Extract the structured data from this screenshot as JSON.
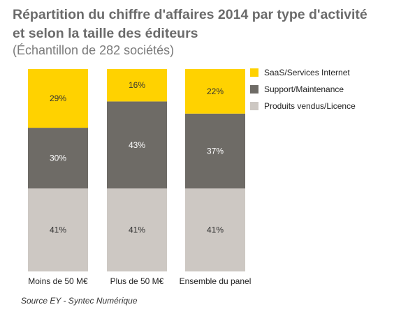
{
  "chart_data": {
    "type": "bar",
    "stacked": "percent",
    "title_line1": "Répartition du chiffre d'affaires 2014 par type d'activité",
    "title_line2": "et selon la taille des éditeurs",
    "subtitle": "(Échantillon de 282 sociétés)",
    "categories": [
      "Moins de 50 M€",
      "Plus de 50 M€",
      "Ensemble du panel"
    ],
    "series": [
      {
        "name": "Produits vendus/Licence",
        "values": [
          41,
          41,
          41
        ],
        "labels": [
          "41%",
          "41%",
          "41%"
        ],
        "color": "#cdc8c3"
      },
      {
        "name": "Support/Maintenance",
        "values": [
          30,
          43,
          37
        ],
        "labels": [
          "30%",
          "43%",
          "37%"
        ],
        "color": "#6e6b66"
      },
      {
        "name": "SaaS/Services Internet",
        "values": [
          29,
          16,
          22
        ],
        "labels": [
          "29%",
          "16%",
          "22%"
        ],
        "color": "#ffd200"
      }
    ],
    "legend_order": [
      "SaaS/Services Internet",
      "Support/Maintenance",
      "Produits vendus/Licence"
    ],
    "legend_position": "right",
    "ylim": [
      0,
      100
    ],
    "grid": false,
    "source": "Source EY - Syntec Numérique"
  }
}
